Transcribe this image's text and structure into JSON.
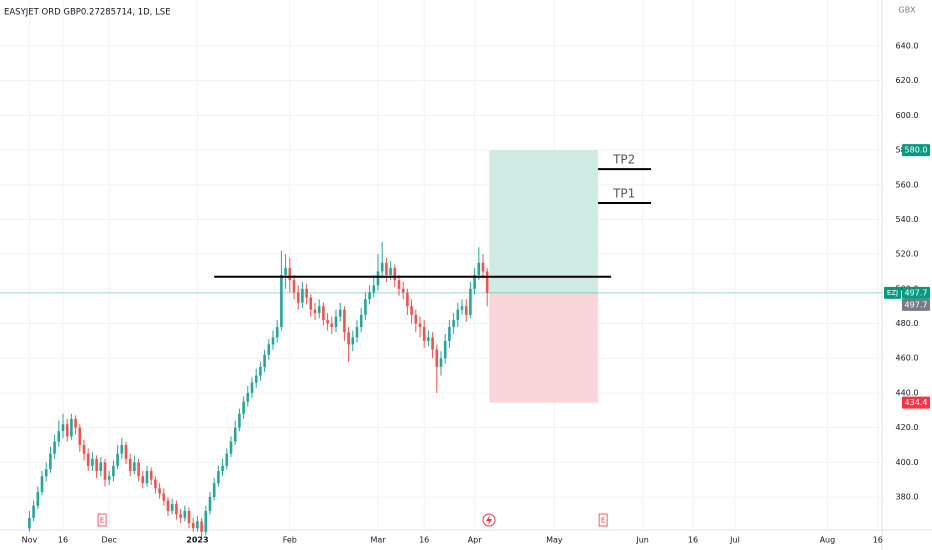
{
  "chart_data": {
    "type": "candlestick",
    "title": "EASYJET ORD GBP0.27285714, 1D, LSE",
    "y_axis_label": "GBX",
    "up_color": "#26a69a",
    "down_color": "#ef5350",
    "grid": true,
    "ylim": [
      361,
      666.5
    ],
    "yticks": [
      {
        "value": 380,
        "label": "380.0"
      },
      {
        "value": 400,
        "label": "400.0"
      },
      {
        "value": 420,
        "label": "420.0"
      },
      {
        "value": 440,
        "label": "440.0"
      },
      {
        "value": 460,
        "label": "460.0"
      },
      {
        "value": 480,
        "label": "480.0"
      },
      {
        "value": 500,
        "label": "500.0"
      },
      {
        "value": 520,
        "label": "520.0"
      },
      {
        "value": 540,
        "label": "540.0"
      },
      {
        "value": 560,
        "label": "560.0"
      },
      {
        "value": 580,
        "label": "580.0"
      },
      {
        "value": 600,
        "label": "600.0"
      },
      {
        "value": 620,
        "label": "620.0"
      },
      {
        "value": 640,
        "label": "640.0"
      }
    ],
    "xlim": [
      -7,
      203
    ],
    "xticks": [
      {
        "value": 0,
        "label": "Nov"
      },
      {
        "value": 8,
        "label": "16"
      },
      {
        "value": 19,
        "label": "Dec"
      },
      {
        "value": 40,
        "label": "2023"
      },
      {
        "value": 62,
        "label": "Feb"
      },
      {
        "value": 83,
        "label": "Mar"
      },
      {
        "value": 94,
        "label": "16"
      },
      {
        "value": 106,
        "label": "Apr"
      },
      {
        "value": 125,
        "label": "May"
      },
      {
        "value": 146,
        "label": "Jun"
      },
      {
        "value": 158,
        "label": "16"
      },
      {
        "value": 168,
        "label": "Jul"
      },
      {
        "value": 190,
        "label": "Aug"
      },
      {
        "value": 202,
        "label": "16"
      }
    ],
    "open": [
      362,
      368,
      375,
      383,
      392,
      396,
      405,
      412,
      418,
      422,
      415,
      425,
      420,
      410,
      405,
      398,
      402,
      395,
      400,
      390,
      392,
      398,
      405,
      410,
      402,
      395,
      400,
      392,
      388,
      395,
      390,
      385,
      382,
      378,
      372,
      376,
      370,
      368,
      372,
      365,
      362,
      366,
      360,
      372,
      380,
      388,
      395,
      398,
      405,
      412,
      420,
      428,
      435,
      440,
      446,
      450,
      455,
      462,
      468,
      472,
      478,
      508,
      512,
      505,
      498,
      492,
      500,
      495,
      488,
      486,
      490,
      482,
      480,
      478,
      484,
      488,
      475,
      468,
      472,
      478,
      485,
      494,
      498,
      502,
      510,
      515,
      508,
      512,
      505,
      500,
      498,
      490,
      485,
      480,
      478,
      470,
      472,
      465,
      455,
      460,
      470,
      478,
      482,
      488,
      490,
      485,
      500,
      508,
      515,
      510
    ],
    "high": [
      372,
      378,
      386,
      395,
      400,
      409,
      416,
      424,
      428,
      425,
      428,
      427,
      422,
      413,
      408,
      406,
      404,
      403,
      402,
      395,
      401,
      410,
      414,
      412,
      405,
      404,
      402,
      395,
      398,
      397,
      392,
      388,
      385,
      380,
      379,
      378,
      373,
      375,
      374,
      368,
      369,
      368,
      375,
      383,
      391,
      398,
      402,
      408,
      415,
      424,
      431,
      438,
      444,
      449,
      454,
      458,
      465,
      471,
      476,
      482,
      522,
      520,
      518,
      508,
      502,
      504,
      503,
      497,
      492,
      494,
      492,
      486,
      484,
      488,
      492,
      490,
      478,
      476,
      482,
      489,
      498,
      502,
      508,
      520,
      527,
      518,
      516,
      514,
      508,
      504,
      500,
      494,
      488,
      484,
      482,
      476,
      475,
      468,
      464,
      474,
      482,
      486,
      492,
      494,
      494,
      504,
      512,
      524,
      520,
      512
    ],
    "low": [
      360,
      366,
      373,
      381,
      389,
      394,
      402,
      409,
      414,
      412,
      413,
      416,
      406,
      401,
      395,
      395,
      391,
      392,
      386,
      387,
      389,
      396,
      402,
      399,
      392,
      393,
      389,
      385,
      386,
      387,
      382,
      379,
      375,
      369,
      370,
      367,
      365,
      366,
      362,
      360,
      360,
      357,
      358,
      370,
      378,
      386,
      392,
      396,
      403,
      410,
      418,
      425,
      432,
      437,
      443,
      447,
      452,
      459,
      465,
      469,
      476,
      500,
      498,
      494,
      488,
      489,
      491,
      484,
      482,
      483,
      479,
      476,
      474,
      475,
      481,
      470,
      458,
      464,
      469,
      475,
      482,
      491,
      495,
      499,
      506,
      504,
      505,
      501,
      496,
      494,
      485,
      480,
      475,
      472,
      466,
      467,
      460,
      440,
      450,
      457,
      466,
      474,
      478,
      485,
      481,
      483,
      497,
      505,
      506,
      490
    ],
    "close": [
      368,
      375,
      383,
      392,
      396,
      405,
      412,
      418,
      422,
      415,
      425,
      420,
      410,
      405,
      398,
      402,
      395,
      400,
      390,
      392,
      398,
      405,
      410,
      402,
      395,
      400,
      392,
      388,
      395,
      390,
      385,
      382,
      378,
      372,
      376,
      370,
      368,
      372,
      365,
      362,
      366,
      360,
      372,
      380,
      388,
      395,
      398,
      405,
      412,
      420,
      428,
      435,
      440,
      446,
      450,
      455,
      462,
      468,
      472,
      478,
      508,
      512,
      505,
      498,
      492,
      500,
      495,
      488,
      486,
      490,
      482,
      480,
      478,
      484,
      488,
      475,
      468,
      472,
      478,
      485,
      494,
      498,
      502,
      510,
      515,
      508,
      512,
      505,
      500,
      498,
      490,
      485,
      480,
      478,
      470,
      472,
      465,
      455,
      460,
      470,
      478,
      482,
      488,
      490,
      485,
      500,
      508,
      515,
      510,
      497.7
    ],
    "position": {
      "entry": 497.7,
      "target": 580,
      "stop": 434.4,
      "x_start": 109.5,
      "x_end": 135.4,
      "profit_color": "#cfebe4",
      "loss_color": "#fbd6d8"
    },
    "drawings": [
      {
        "value": 507,
        "x_start": 44,
        "x_end": 138.5
      },
      {
        "value": 569,
        "x_start": 135.4,
        "x_end": 148,
        "label": "TP2"
      },
      {
        "value": 549.5,
        "x_start": 135.4,
        "x_end": 148,
        "label": "TP1"
      }
    ],
    "price_labels": [
      {
        "value": 580,
        "label": "580.0",
        "color": "#089981"
      },
      {
        "value": 497.7,
        "label": "497.7",
        "color": "#089981",
        "tag": "EZJ"
      },
      {
        "value": 497.7,
        "label": "497.7",
        "color": "#787b86"
      },
      {
        "value": 434.4,
        "label": "434.4",
        "color": "#f23645"
      }
    ],
    "events": [
      {
        "x": 17.3,
        "label": "E"
      },
      {
        "x": 136.6,
        "label": "E"
      }
    ]
  }
}
